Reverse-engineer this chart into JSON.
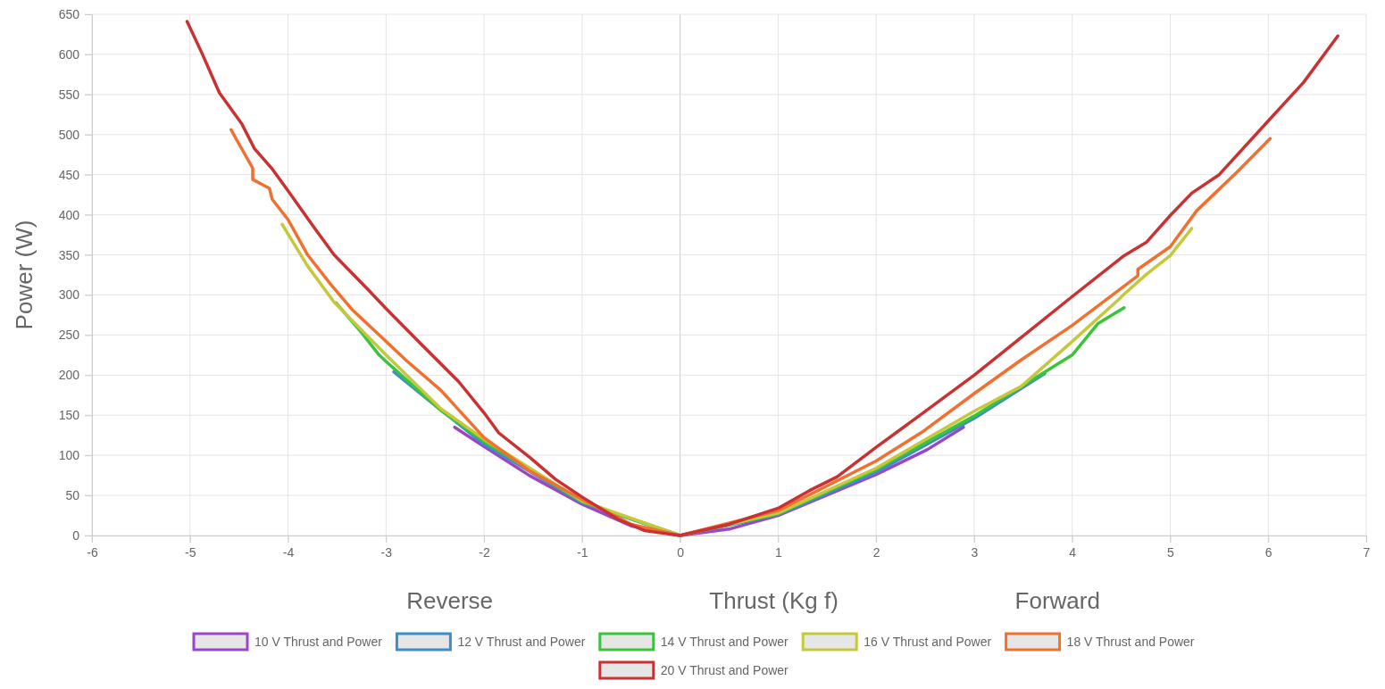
{
  "chart_data": {
    "type": "line",
    "xlabel": "Thrust (Kg f)",
    "ylabel": "Power (W)",
    "annotations": [
      "Reverse",
      "Forward"
    ],
    "xlim": [
      -6,
      7
    ],
    "xticks": [
      -6,
      -5,
      -4,
      -3,
      -2,
      -1,
      0,
      1,
      2,
      3,
      4,
      5,
      6,
      7
    ],
    "ylim": [
      0,
      650
    ],
    "yticks": [
      0,
      50,
      100,
      150,
      200,
      250,
      300,
      350,
      400,
      450,
      500,
      550,
      600,
      650
    ],
    "grid": true,
    "legend": "bottom",
    "marker": "none",
    "line_style": "solid",
    "series": [
      {
        "name": "10 V Thrust and Power",
        "color": "#9b45c9",
        "x": [
          -2.3,
          -2.0,
          -1.54,
          -1.0,
          -0.5,
          0,
          0.5,
          1,
          2,
          2.52,
          2.89
        ],
        "values": [
          135,
          111,
          75,
          39,
          12,
          0,
          8,
          25,
          76,
          107,
          135
        ]
      },
      {
        "name": "12 V Thrust and Power",
        "color": "#3c8dc8",
        "x": [
          -2.92,
          -2.58,
          -2.0,
          -1.0,
          0,
          1,
          2,
          3,
          3.72
        ],
        "values": [
          204,
          170,
          114,
          41,
          0,
          26,
          79,
          146,
          202
        ]
      },
      {
        "name": "14 V Thrust and Power",
        "color": "#3bc43b",
        "x": [
          -3.51,
          -3.25,
          -3.07,
          -3.0,
          -2.44,
          -2.0,
          -1.0,
          0,
          1,
          2,
          3,
          3.63,
          4,
          4.26,
          4.53
        ],
        "values": [
          290,
          253,
          225,
          217,
          156,
          117,
          42,
          0,
          27,
          82,
          149,
          197,
          225,
          264,
          284
        ]
      },
      {
        "name": "16 V Thrust and Power",
        "color": "#c5c83a",
        "x": [
          -4.06,
          -3.8,
          -3.53,
          -3.0,
          -2.44,
          -2.0,
          -1.0,
          0,
          1,
          2,
          3,
          3.48,
          4,
          4.48,
          4.53,
          4.76,
          5,
          5.22
        ],
        "values": [
          388,
          336,
          291,
          225,
          158,
          120,
          43,
          0,
          28,
          84,
          155,
          186,
          242,
          295,
          301,
          326,
          349,
          383
        ]
      },
      {
        "name": "18 V Thrust and Power",
        "color": "#f07030",
        "x": [
          -4.58,
          -4.54,
          -4.36,
          -4.36,
          -4.19,
          -4.16,
          -4.0,
          -3.8,
          -3.57,
          -3.34,
          -3.0,
          -2.8,
          -2.44,
          -2.0,
          -1.54,
          -1.0,
          -0.5,
          0,
          1,
          2,
          2.47,
          3,
          3.48,
          4,
          4.67,
          4.67,
          5,
          5.27,
          5.68,
          6.02
        ],
        "values": [
          506,
          497,
          458,
          444,
          433,
          419,
          394,
          350,
          314,
          281,
          242,
          219,
          181,
          122,
          81,
          45,
          14,
          0,
          31,
          93,
          129,
          177,
          219,
          262,
          324,
          332,
          360,
          405,
          453,
          495
        ]
      },
      {
        "name": "20 V Thrust and Power",
        "color": "#c83232",
        "x": [
          -5.03,
          -4.88,
          -4.7,
          -4.47,
          -4.34,
          -4.16,
          -4.0,
          -3.71,
          -3.53,
          -3.17,
          -3.0,
          -2.62,
          -2.26,
          -2.0,
          -1.85,
          -1.54,
          -1.27,
          -1.0,
          -0.63,
          -0.36,
          0,
          0.5,
          1,
          1.32,
          1.6,
          2,
          2.47,
          3,
          3.48,
          4,
          4.53,
          4.76,
          5,
          5.22,
          5.5,
          6,
          6.36,
          6.71
        ],
        "values": [
          641,
          602,
          552,
          513,
          482,
          457,
          430,
          380,
          350,
          305,
          283,
          236,
          192,
          153,
          128,
          98,
          70,
          48,
          20,
          6,
          0,
          14,
          34,
          56,
          73,
          110,
          152,
          200,
          247,
          298,
          349,
          366,
          399,
          427,
          450,
          517,
          565,
          623
        ]
      }
    ]
  }
}
